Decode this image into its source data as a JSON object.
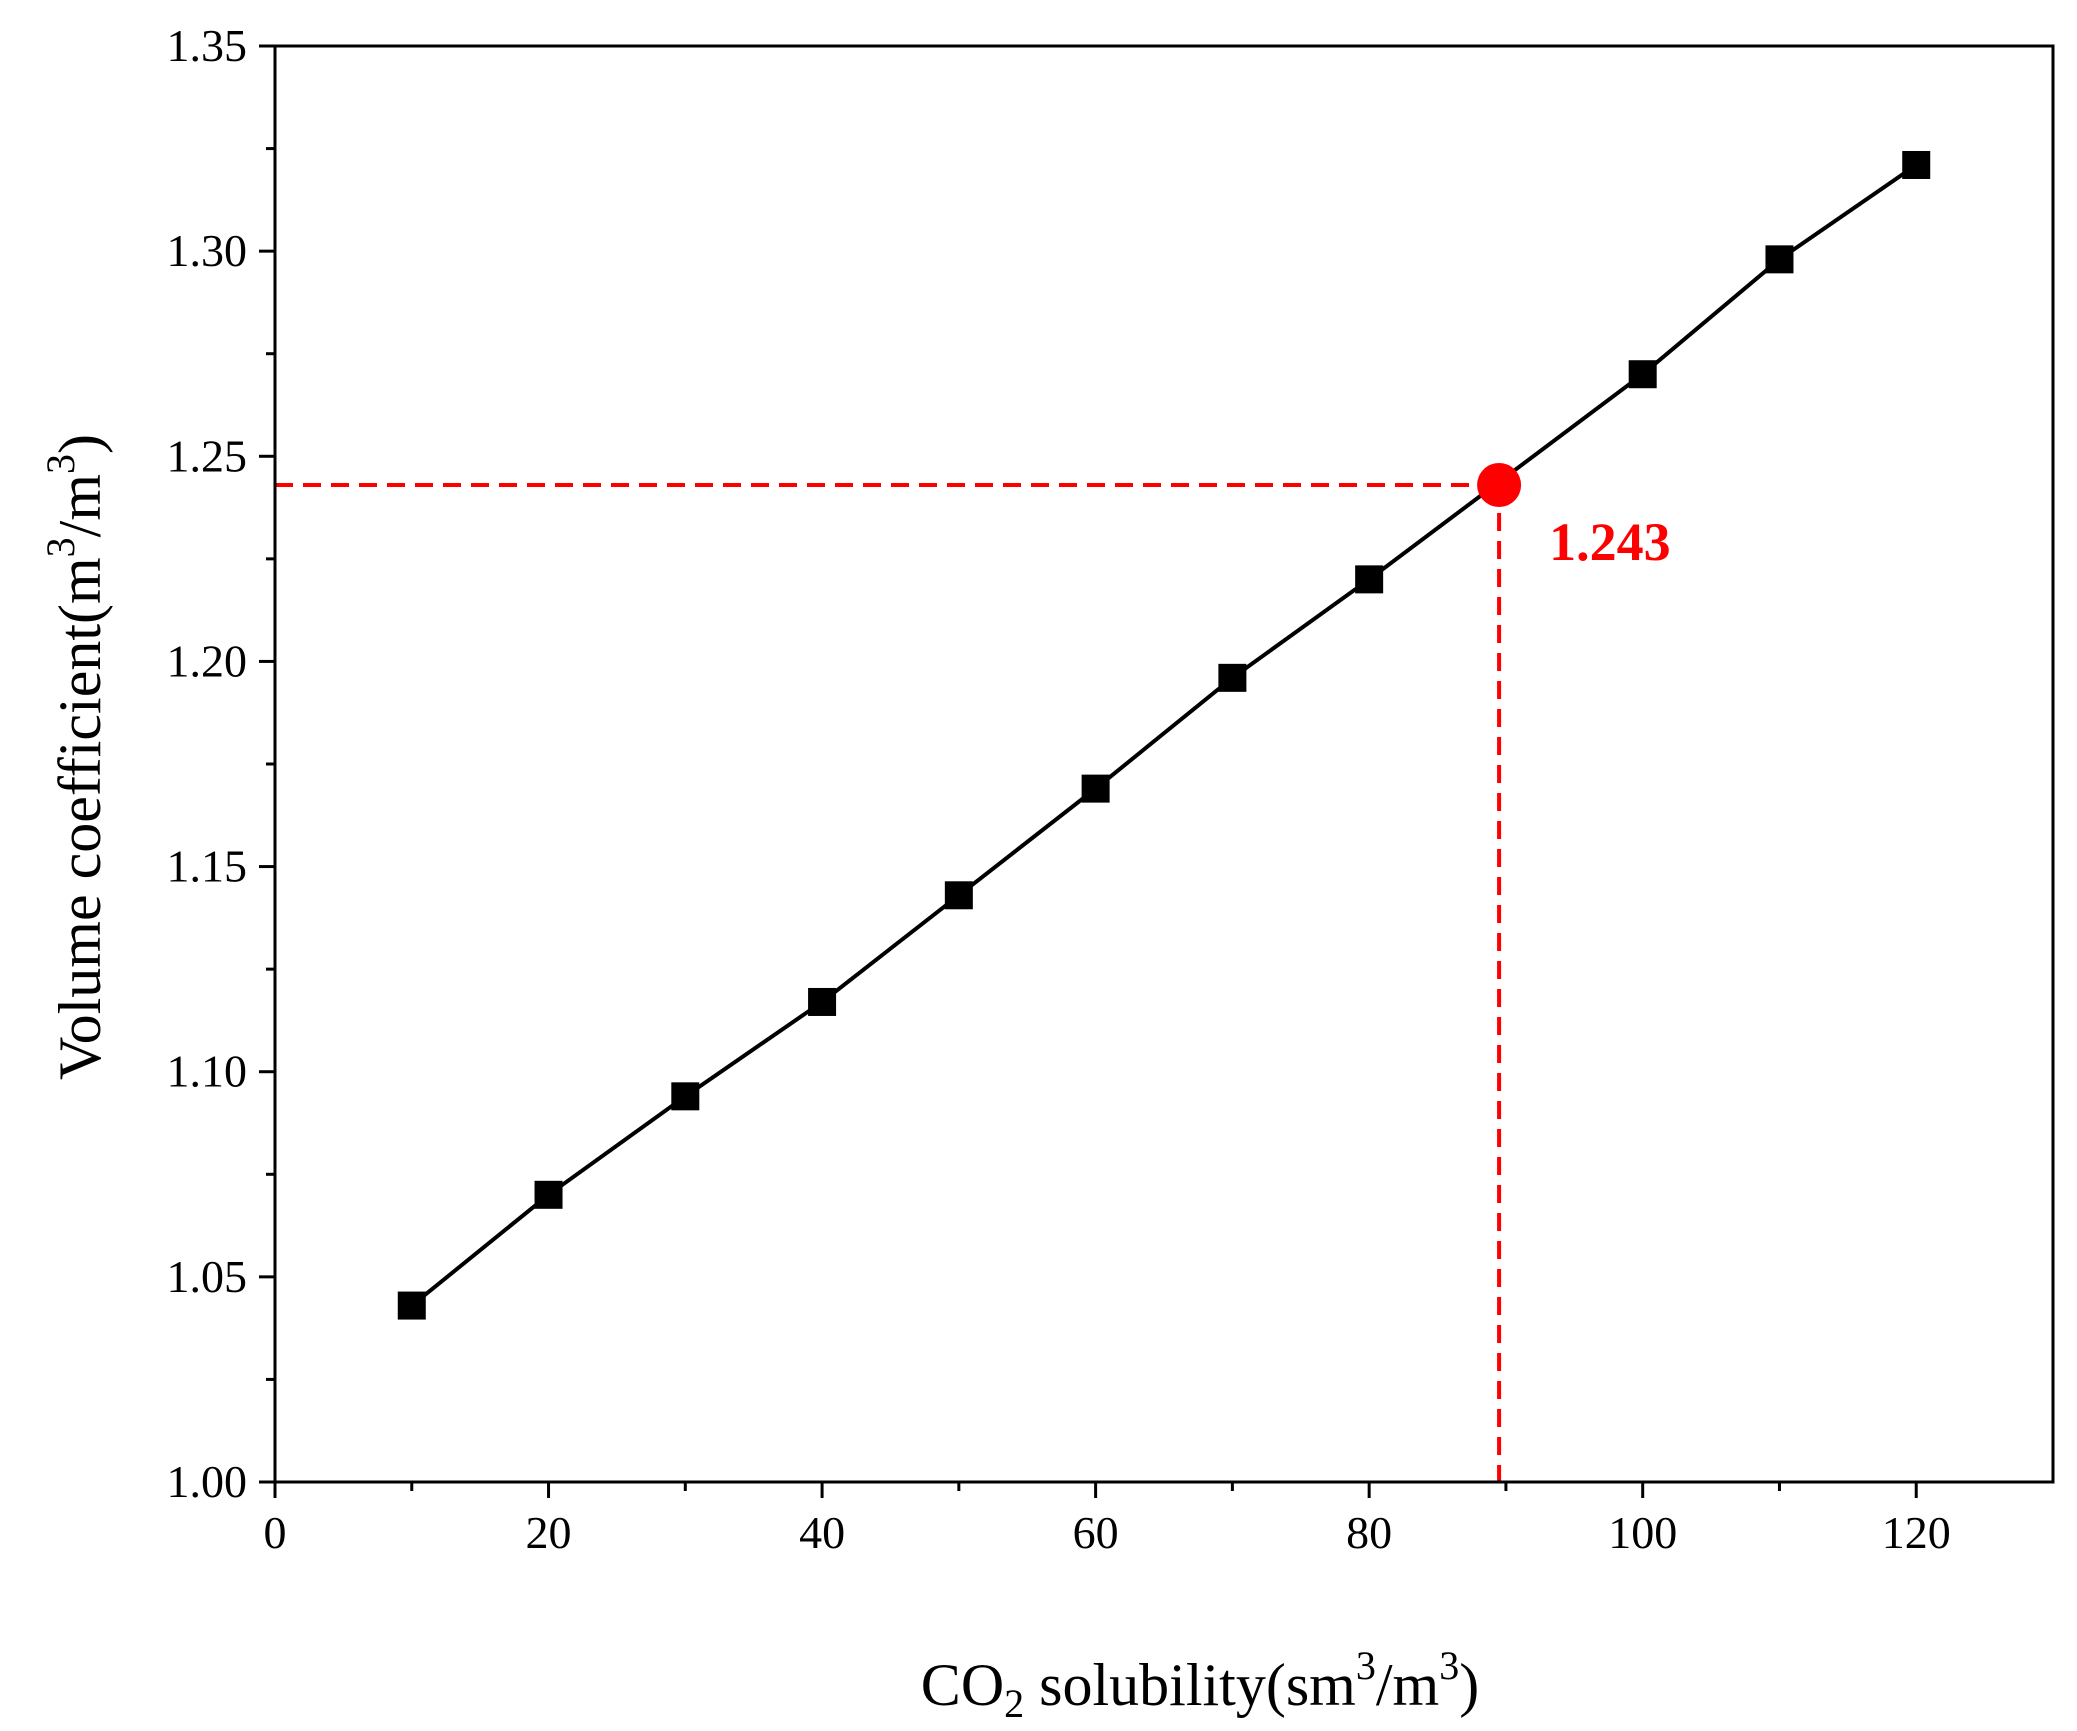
{
  "chart_data": {
    "type": "line",
    "title": "",
    "xlabel": {
      "prefix": "CO",
      "sub": "2",
      "middle": " solubility(sm",
      "sup1": "3",
      "mid2": "/m",
      "sup2": "3",
      "suffix": ")"
    },
    "ylabel": {
      "prefix": "Volume coefficient(m",
      "sup1": "3",
      "mid": "/m",
      "sup2": "3",
      "suffix": ")"
    },
    "xlim": [
      0,
      130
    ],
    "ylim": [
      1.0,
      1.35
    ],
    "x_ticks": [
      0,
      20,
      40,
      60,
      80,
      100,
      120
    ],
    "x_tick_labels": [
      "0",
      "20",
      "40",
      "60",
      "80",
      "100",
      "120"
    ],
    "y_ticks": [
      1.0,
      1.05,
      1.1,
      1.15,
      1.2,
      1.25,
      1.3,
      1.35
    ],
    "y_tick_labels": [
      "1.00",
      "1.05",
      "1.10",
      "1.15",
      "1.20",
      "1.25",
      "1.30",
      "1.35"
    ],
    "x_minor_step": 10,
    "y_minor_step": 0.025,
    "grid": false,
    "series": [
      {
        "name": "Volume coefficient",
        "marker": "square",
        "color": "#000000",
        "x": [
          10,
          20,
          30,
          40,
          50,
          60,
          70,
          80,
          100,
          110,
          120
        ],
        "y": [
          1.043,
          1.07,
          1.094,
          1.117,
          1.143,
          1.169,
          1.196,
          1.22,
          1.27,
          1.298,
          1.321
        ]
      }
    ],
    "highlight": {
      "x": 89.5,
      "y": 1.243,
      "label": "1.243",
      "color": "#ff0000"
    }
  }
}
